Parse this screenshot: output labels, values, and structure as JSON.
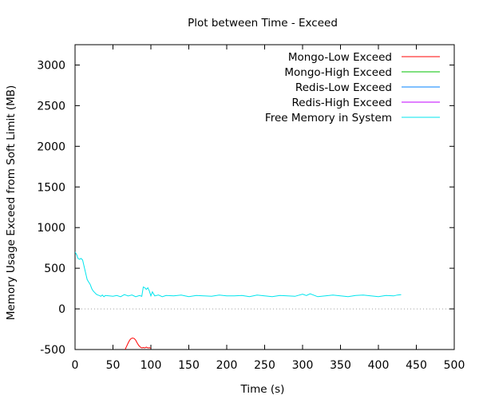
{
  "chart_data": {
    "type": "line",
    "title": "Plot between Time - Exceed",
    "xlabel": "Time (s)",
    "ylabel": "Memory Usage Exceed from Soft Limit (MB)",
    "xlim": [
      0,
      500
    ],
    "ylim": [
      -500,
      3250
    ],
    "xticks": [
      0,
      50,
      100,
      150,
      200,
      250,
      300,
      350,
      400,
      450,
      500
    ],
    "yticks": [
      -500,
      0,
      500,
      1000,
      1500,
      2000,
      2500,
      3000
    ],
    "xtick_labels": [
      "0",
      "50",
      "100",
      "150",
      "200",
      "250",
      "300",
      "350",
      "400",
      "450",
      "500"
    ],
    "ytick_labels": [
      "-500",
      "0",
      "500",
      "1000",
      "1500",
      "2000",
      "2500",
      "3000"
    ],
    "zero_line": true,
    "grid": false,
    "legend_position": "top-right",
    "series": [
      {
        "name": "Mongo-Low Exceed",
        "color": "#ff0000",
        "x": [
          66,
          68,
          70,
          72,
          74,
          76,
          78,
          80,
          82,
          84,
          86,
          88,
          90,
          92,
          94,
          96,
          98,
          100
        ],
        "y": [
          -500,
          -460,
          -420,
          -385,
          -365,
          -360,
          -365,
          -385,
          -420,
          -450,
          -470,
          -480,
          -475,
          -480,
          -470,
          -480,
          -478,
          -482
        ]
      },
      {
        "name": "Mongo-High Exceed",
        "color": "#00c000",
        "x": [],
        "y": []
      },
      {
        "name": "Redis-Low Exceed",
        "color": "#0080ff",
        "x": [],
        "y": []
      },
      {
        "name": "Redis-High Exceed",
        "color": "#c000ff",
        "x": [],
        "y": []
      },
      {
        "name": "Free Memory in System",
        "color": "#00e5ee",
        "x": [
          0,
          2,
          4,
          6,
          8,
          10,
          12,
          14,
          16,
          18,
          20,
          22,
          24,
          26,
          28,
          30,
          32,
          34,
          36,
          38,
          40,
          45,
          50,
          55,
          60,
          65,
          70,
          75,
          80,
          85,
          88,
          90,
          92,
          94,
          96,
          98,
          100,
          102,
          105,
          110,
          115,
          120,
          130,
          140,
          150,
          160,
          170,
          180,
          190,
          200,
          210,
          220,
          230,
          240,
          250,
          260,
          270,
          280,
          290,
          300,
          305,
          310,
          320,
          330,
          340,
          350,
          360,
          370,
          380,
          390,
          400,
          410,
          420,
          425,
          430
        ],
        "y": [
          700,
          670,
          620,
          610,
          620,
          600,
          520,
          440,
          360,
          330,
          300,
          250,
          220,
          200,
          180,
          170,
          165,
          155,
          170,
          150,
          165,
          160,
          155,
          165,
          150,
          175,
          160,
          170,
          150,
          165,
          155,
          270,
          260,
          240,
          260,
          220,
          160,
          210,
          160,
          170,
          150,
          165,
          160,
          170,
          150,
          165,
          160,
          155,
          170,
          160,
          160,
          165,
          150,
          170,
          160,
          150,
          165,
          160,
          155,
          180,
          165,
          185,
          150,
          160,
          170,
          160,
          150,
          165,
          170,
          160,
          150,
          165,
          160,
          170,
          175
        ]
      }
    ]
  }
}
